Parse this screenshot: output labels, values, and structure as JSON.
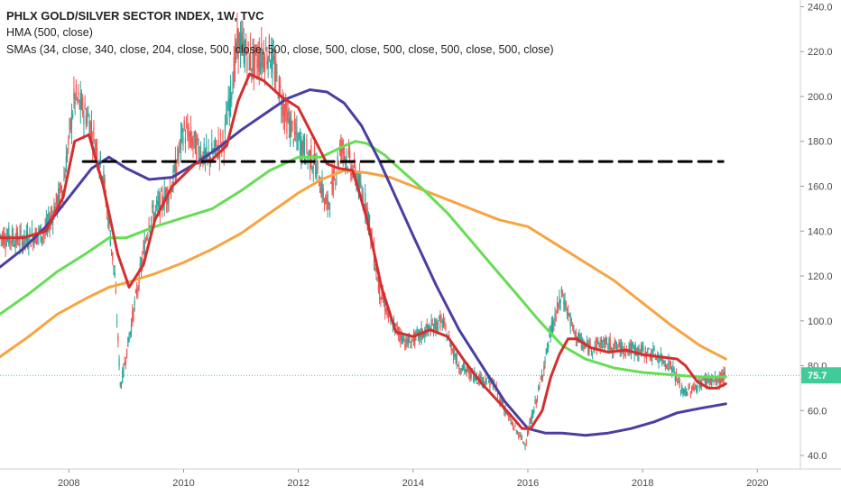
{
  "legend": {
    "title": "PHLX GOLD/SILVER SECTOR INDEX, 1W, TVC",
    "hma": "HMA (500, close)",
    "smas": "SMAs (34, close, 340, close, 204, close, 500, close, 500, close, 500, close, 500, close, 500, close, 500, close)"
  },
  "last_price": "75.7",
  "colors": {
    "up": "#26a69a",
    "down": "#ef5350",
    "sma34": "#d32f2f",
    "sma204": "#66dd55",
    "sma340": "#f7a440",
    "hma": "#4a3fa0",
    "resistance": "#000000",
    "price_tag": "#3fcc9a"
  },
  "chart_data": {
    "type": "line",
    "title": "PHLX GOLD/SILVER SECTOR INDEX, 1W, TVC",
    "x_ticks": [
      "2008",
      "2010",
      "2012",
      "2014",
      "2016",
      "2018",
      "2020"
    ],
    "y_ticks": [
      "40.0",
      "60.0",
      "80.0",
      "100.0",
      "120.0",
      "140.0",
      "160.0",
      "180.0",
      "200.0",
      "220.0",
      "240.0"
    ],
    "xlim": [
      2006.8,
      2020.75
    ],
    "ylim": [
      34,
      243
    ],
    "price_close": {
      "x": [
        2006.8,
        2007.2,
        2007.6,
        2007.9,
        2008.1,
        2008.35,
        2008.6,
        2008.8,
        2008.9,
        2009.1,
        2009.4,
        2009.8,
        2010.0,
        2010.4,
        2010.7,
        2010.95,
        2011.2,
        2011.5,
        2011.8,
        2012.0,
        2012.3,
        2012.5,
        2012.75,
        2013.0,
        2013.2,
        2013.4,
        2013.6,
        2013.9,
        2014.2,
        2014.5,
        2014.8,
        2015.1,
        2015.4,
        2015.7,
        2015.95,
        2016.2,
        2016.4,
        2016.6,
        2016.8,
        2017.0,
        2017.3,
        2017.6,
        2017.9,
        2018.2,
        2018.5,
        2018.7,
        2018.9,
        2019.1,
        2019.3,
        2019.45
      ],
      "y": [
        138,
        136,
        140,
        160,
        200,
        190,
        165,
        120,
        70,
        100,
        145,
        160,
        185,
        172,
        180,
        225,
        215,
        220,
        190,
        180,
        170,
        150,
        178,
        165,
        150,
        115,
        100,
        90,
        95,
        100,
        80,
        75,
        72,
        55,
        45,
        70,
        95,
        112,
        95,
        88,
        90,
        88,
        87,
        85,
        80,
        68,
        70,
        74,
        73,
        76
      ]
    },
    "sma34": {
      "x": [
        2006.8,
        2007.2,
        2007.6,
        2007.9,
        2008.1,
        2008.35,
        2008.6,
        2008.85,
        2009.05,
        2009.3,
        2009.5,
        2009.8,
        2010.2,
        2010.5,
        2010.75,
        2010.95,
        2011.15,
        2011.4,
        2011.7,
        2012.0,
        2012.3,
        2012.5,
        2012.7,
        2012.95,
        2013.2,
        2013.45,
        2013.7,
        2014.0,
        2014.3,
        2014.6,
        2014.9,
        2015.2,
        2015.45,
        2015.7,
        2015.9,
        2016.05,
        2016.25,
        2016.4,
        2016.55,
        2016.7,
        2016.85,
        2017.1,
        2017.4,
        2017.7,
        2018.0,
        2018.3,
        2018.6,
        2018.75,
        2018.95,
        2019.15,
        2019.3,
        2019.45
      ],
      "y": [
        137,
        137,
        140,
        155,
        180,
        183,
        160,
        130,
        115,
        125,
        145,
        160,
        170,
        172,
        178,
        198,
        210,
        207,
        200,
        195,
        180,
        170,
        168,
        167,
        145,
        115,
        95,
        93,
        96,
        93,
        82,
        72,
        65,
        58,
        52,
        52,
        60,
        75,
        85,
        92,
        92,
        88,
        86,
        87,
        85,
        84,
        83,
        80,
        73,
        70,
        70,
        72
      ]
    },
    "sma204": {
      "x": [
        2006.8,
        2007.3,
        2007.8,
        2008.3,
        2008.7,
        2009.0,
        2009.5,
        2010.0,
        2010.5,
        2011.0,
        2011.5,
        2012.0,
        2012.4,
        2012.8,
        2013.0,
        2013.2,
        2013.5,
        2013.8,
        2014.2,
        2014.6,
        2015.0,
        2015.4,
        2015.8,
        2016.2,
        2016.6,
        2017.0,
        2017.5,
        2018.0,
        2018.5,
        2019.0,
        2019.45
      ],
      "y": [
        103,
        112,
        122,
        130,
        137,
        137,
        142,
        146,
        150,
        158,
        167,
        173,
        173,
        178,
        180,
        179,
        174,
        167,
        158,
        148,
        136,
        124,
        112,
        100,
        89,
        83,
        79,
        77,
        76,
        75,
        75
      ]
    },
    "sma340": {
      "x": [
        2006.8,
        2007.3,
        2007.8,
        2008.3,
        2008.7,
        2009.0,
        2009.5,
        2010.0,
        2010.5,
        2011.0,
        2011.5,
        2012.0,
        2012.4,
        2012.8,
        2013.2,
        2013.6,
        2014.0,
        2014.5,
        2015.0,
        2015.5,
        2016.0,
        2016.5,
        2017.0,
        2017.5,
        2018.0,
        2018.5,
        2019.0,
        2019.45
      ],
      "y": [
        84,
        93,
        103,
        110,
        115,
        117,
        121,
        126,
        132,
        139,
        148,
        157,
        163,
        167,
        166,
        164,
        160,
        155,
        150,
        145,
        142,
        134,
        126,
        118,
        108,
        98,
        89,
        83
      ]
    },
    "hma": {
      "x": [
        2006.8,
        2007.2,
        2007.6,
        2008.0,
        2008.4,
        2008.7,
        2009.0,
        2009.4,
        2009.8,
        2010.2,
        2010.6,
        2011.0,
        2011.4,
        2011.8,
        2012.2,
        2012.5,
        2012.8,
        2013.1,
        2013.4,
        2013.7,
        2014.0,
        2014.4,
        2014.8,
        2015.2,
        2015.6,
        2016.0,
        2016.3,
        2016.6,
        2017.0,
        2017.4,
        2017.8,
        2018.2,
        2018.6,
        2019.0,
        2019.45
      ],
      "y": [
        124,
        132,
        142,
        155,
        168,
        173,
        168,
        163,
        164,
        170,
        177,
        185,
        192,
        199,
        203,
        202,
        197,
        187,
        172,
        155,
        138,
        116,
        96,
        80,
        64,
        52,
        50,
        50,
        49,
        50,
        52,
        55,
        59,
        61,
        63
      ]
    },
    "resistance": {
      "x": [
        2008.25,
        2019.4
      ],
      "y": [
        171,
        171
      ]
    },
    "last_value_line": 75.7
  }
}
